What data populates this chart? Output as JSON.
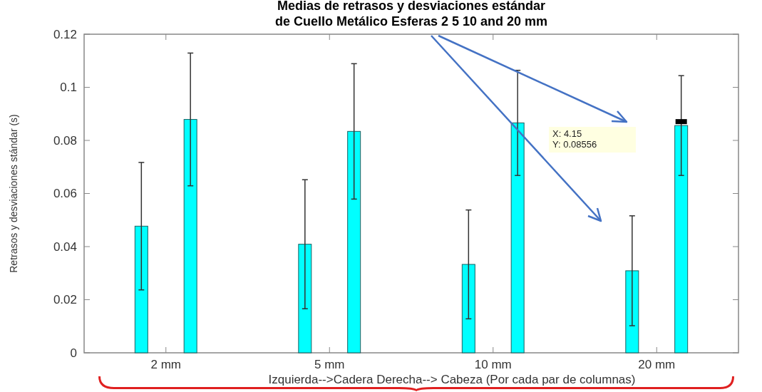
{
  "chart_data": {
    "type": "bar",
    "title": "Medias de retrasos y desviaciones estándar\nde Cuello Metálico Esferas 2 5 10 and 20 mm",
    "xlabel": "Izquierda-->Cadera   Derecha--> Cabeza  (Por cada par de columnas)",
    "ylabel": "Retrasos y desviaciones stándar (s)",
    "categories": [
      "2 mm",
      "5 mm",
      "10 mm",
      "20 mm"
    ],
    "series": [
      {
        "color": "#00ffff",
        "values": [
          0.0477,
          0.0409,
          0.0333,
          0.0309
        ],
        "errors": [
          0.024,
          0.0243,
          0.0205,
          0.0207
        ]
      },
      {
        "color": "#00ffff",
        "values": [
          0.0879,
          0.0834,
          0.0866,
          0.0856
        ],
        "errors": [
          0.025,
          0.0255,
          0.0198,
          0.0188
        ]
      }
    ],
    "ylim": [
      0,
      0.12
    ],
    "yticks": [
      0,
      0.02,
      0.04,
      0.06,
      0.08,
      0.1,
      0.12
    ],
    "annotations": [
      "X: 4.15\nY: 0.08556"
    ],
    "grid": false
  }
}
